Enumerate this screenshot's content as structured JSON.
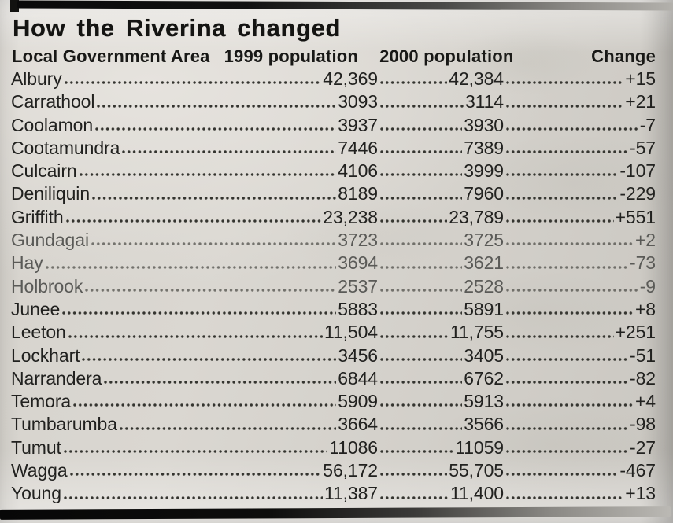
{
  "title": "How the Riverina changed",
  "table": {
    "columns": [
      "Local Government Area",
      "1999 population",
      "2000 population",
      "Change"
    ],
    "rows": [
      {
        "lga": "Albury",
        "pop1999": "42,369",
        "pop2000": "42,384",
        "change": "+15"
      },
      {
        "lga": "Carrathool",
        "pop1999": "3093",
        "pop2000": "3114",
        "change": "+21"
      },
      {
        "lga": "Coolamon",
        "pop1999": "3937",
        "pop2000": "3930",
        "change": "-7"
      },
      {
        "lga": "Cootamundra",
        "pop1999": "7446",
        "pop2000": "7389",
        "change": "-57"
      },
      {
        "lga": "Culcairn",
        "pop1999": "4106",
        "pop2000": "3999",
        "change": "-107"
      },
      {
        "lga": "Deniliquin",
        "pop1999": "8189",
        "pop2000": "7960",
        "change": "-229"
      },
      {
        "lga": "Griffith",
        "pop1999": "23,238",
        "pop2000": "23,789",
        "change": "+551"
      },
      {
        "lga": "Gundagai",
        "pop1999": "3723",
        "pop2000": "3725",
        "change": "+2"
      },
      {
        "lga": "Hay",
        "pop1999": "3694",
        "pop2000": "3621",
        "change": "-73"
      },
      {
        "lga": "Holbrook",
        "pop1999": "2537",
        "pop2000": "2528",
        "change": "-9"
      },
      {
        "lga": "Junee",
        "pop1999": "5883",
        "pop2000": "5891",
        "change": "+8"
      },
      {
        "lga": "Leeton",
        "pop1999": "11,504",
        "pop2000": "11,755",
        "change": "+251"
      },
      {
        "lga": "Lockhart",
        "pop1999": "3456",
        "pop2000": "3405",
        "change": "-51"
      },
      {
        "lga": "Narrandera",
        "pop1999": "6844",
        "pop2000": "6762",
        "change": "-82"
      },
      {
        "lga": "Temora",
        "pop1999": "5909",
        "pop2000": "5913",
        "change": "+4"
      },
      {
        "lga": "Tumbarumba",
        "pop1999": "3664",
        "pop2000": "3566",
        "change": "-98"
      },
      {
        "lga": "Tumut",
        "pop1999": "11086",
        "pop2000": "11059",
        "change": "-27"
      },
      {
        "lga": "Wagga",
        "pop1999": "56,172",
        "pop2000": "55,705",
        "change": "-467"
      },
      {
        "lga": "Young",
        "pop1999": "11,387",
        "pop2000": "11,400",
        "change": "+13"
      }
    ]
  },
  "colors": {
    "paper": "#d4d1cb",
    "ink": "#21211f",
    "rule_dark": "#0a0a0a",
    "rule_light": "#b3b1ac"
  }
}
